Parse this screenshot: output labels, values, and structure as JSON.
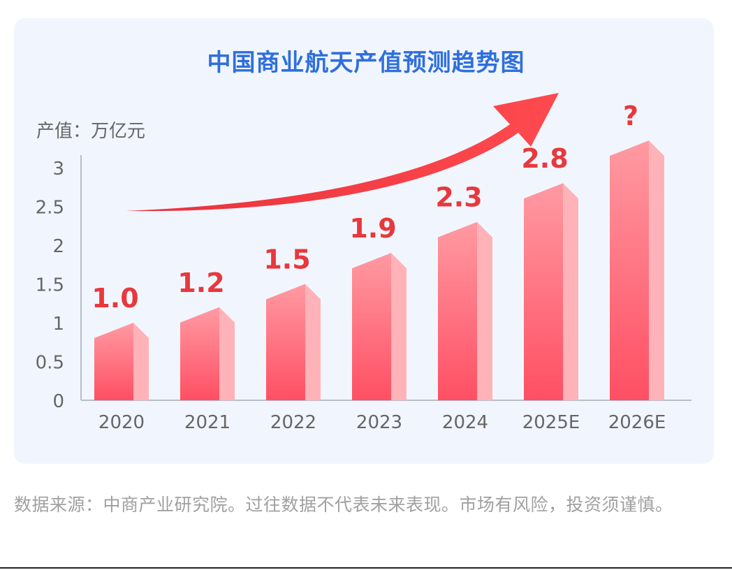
{
  "chart_data": {
    "type": "bar",
    "title": "中国商业航天产值预测趋势图",
    "ylabel": "产值：万亿元",
    "xlabel": "",
    "categories": [
      "2020",
      "2021",
      "2022",
      "2023",
      "2024",
      "2025E",
      "2026E"
    ],
    "values": [
      1.0,
      1.2,
      1.5,
      1.9,
      2.3,
      2.8,
      null
    ],
    "data_labels": [
      "1.0",
      "1.2",
      "1.5",
      "1.9",
      "2.3",
      "2.8",
      "?"
    ],
    "yticks": [
      "0",
      "0.5",
      "1",
      "1.5",
      "2",
      "2.5",
      "3"
    ],
    "ylim": [
      0,
      3
    ],
    "grid": false,
    "legend": "none",
    "style_3d": true,
    "trend_arrow": true
  },
  "colors": {
    "title": "#2f6fdc",
    "bar_top": "#ff9aa2",
    "bar_bottom": "#ff4f63",
    "bar_side": "#ffb3b8",
    "label": "#e8383d",
    "arrow": "#f0383f",
    "axis_text": "#666666",
    "background": "#f1f6fe"
  },
  "footer": {
    "source_note": "数据来源：中商产业研究院。过往数据不代表未来表现。市场有风险，投资须谨慎。"
  }
}
